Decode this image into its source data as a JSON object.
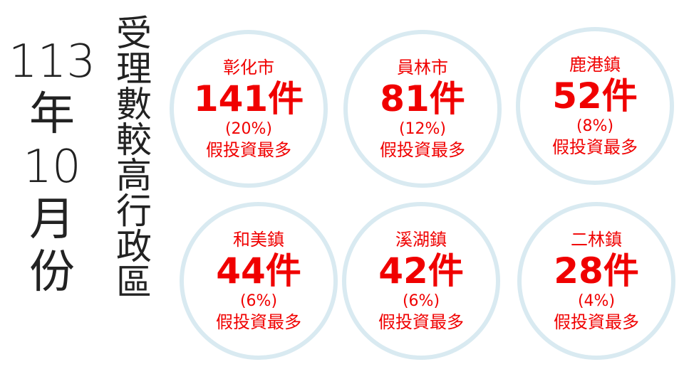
{
  "month": [
    "113",
    "年",
    "10",
    "月",
    "份"
  ],
  "subtitle": "受理數較高行政區",
  "note_label": "假投資最多",
  "colors": {
    "text": "#f00000",
    "ring": "#d9eaf1",
    "title": "#222222"
  },
  "districts": [
    {
      "name": "彰化市",
      "count": "141件",
      "pct": "(20%)",
      "note": "假投資最多"
    },
    {
      "name": "員林市",
      "count": "81件",
      "pct": "(12%)",
      "note": "假投資最多"
    },
    {
      "name": "鹿港鎮",
      "count": "52件",
      "pct": "(8%)",
      "note": "假投資最多"
    },
    {
      "name": "和美鎮",
      "count": "44件",
      "pct": "(6%)",
      "note": "假投資最多"
    },
    {
      "name": "溪湖鎮",
      "count": "42件",
      "pct": "(6%)",
      "note": "假投資最多"
    },
    {
      "name": "二林鎮",
      "count": "28件",
      "pct": "(4%)",
      "note": "假投資最多"
    }
  ]
}
